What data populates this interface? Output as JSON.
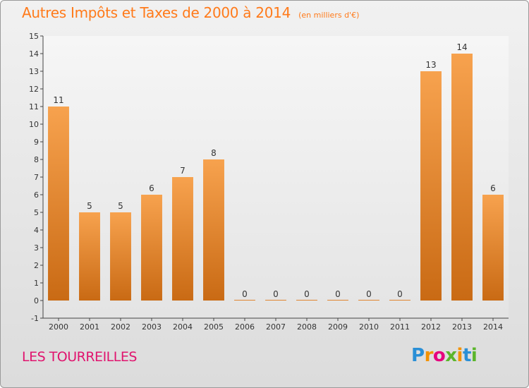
{
  "header": {
    "title": "Autres Impôts et Taxes de 2000 à 2014",
    "unit": "(en milliers d'€)"
  },
  "footer": {
    "commune": "LES TOURREILLES",
    "logo": [
      "P",
      "r",
      "o",
      "x",
      "i",
      "t",
      "i"
    ]
  },
  "colors": {
    "bar_top": "#f7a24e",
    "bar_bottom": "#c96a14",
    "title": "#ff7a1a",
    "commune": "#e0146e"
  },
  "chart_data": {
    "type": "bar",
    "title": "Autres Impôts et Taxes de 2000 à 2014",
    "ylabel": "(en milliers d'€)",
    "categories": [
      "2000",
      "2001",
      "2002",
      "2003",
      "2004",
      "2005",
      "2006",
      "2007",
      "2008",
      "2009",
      "2010",
      "2011",
      "2012",
      "2013",
      "2014"
    ],
    "values": [
      11,
      5,
      5,
      6,
      7,
      8,
      0,
      0,
      0,
      0,
      0,
      0,
      13,
      14,
      6
    ],
    "data_labels": [
      "11",
      "5",
      "5",
      "6",
      "7",
      "8",
      "0",
      "0",
      "0",
      "0",
      "0",
      "0",
      "13",
      "14",
      "6"
    ],
    "y_ticks": [
      "-1",
      "0",
      "1",
      "2",
      "3",
      "4",
      "5",
      "6",
      "7",
      "8",
      "9",
      "10",
      "11",
      "12",
      "13",
      "14",
      "15"
    ],
    "ylim": [
      -1,
      15
    ],
    "grid": false,
    "legend": "none"
  }
}
